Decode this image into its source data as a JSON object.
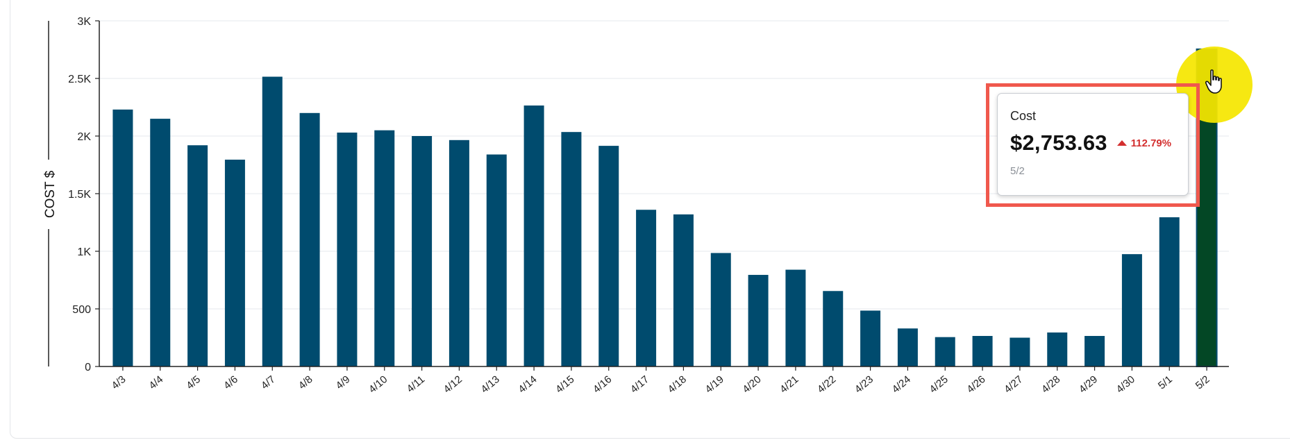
{
  "chart_data": {
    "type": "bar",
    "ylabel": "COST $",
    "ylim": [
      0,
      3000
    ],
    "yticks": [
      {
        "value": 0,
        "label": "0"
      },
      {
        "value": 500,
        "label": "500"
      },
      {
        "value": 1000,
        "label": "1K"
      },
      {
        "value": 1500,
        "label": "1.5K"
      },
      {
        "value": 2000,
        "label": "2K"
      },
      {
        "value": 2500,
        "label": "2.5K"
      },
      {
        "value": 3000,
        "label": "3K"
      }
    ],
    "grid": true,
    "categories": [
      "4/3",
      "4/4",
      "4/5",
      "4/6",
      "4/7",
      "4/8",
      "4/9",
      "4/10",
      "4/11",
      "4/12",
      "4/13",
      "4/14",
      "4/15",
      "4/16",
      "4/17",
      "4/18",
      "4/19",
      "4/20",
      "4/21",
      "4/22",
      "4/23",
      "4/24",
      "4/25",
      "4/26",
      "4/27",
      "4/28",
      "4/29",
      "4/30",
      "5/1",
      "5/2"
    ],
    "values": [
      2230,
      2150,
      1920,
      1795,
      2515,
      2200,
      2030,
      2050,
      2000,
      1965,
      1840,
      2265,
      2035,
      1915,
      1360,
      1320,
      985,
      795,
      840,
      655,
      485,
      330,
      255,
      265,
      250,
      295,
      265,
      975,
      1295,
      2753.63
    ],
    "highlighted_category": "5/2",
    "colors": {
      "bar": "#004b6e",
      "bar_highlight": "#034725"
    }
  },
  "tooltip": {
    "label": "Cost",
    "value": "$2,753.63",
    "change": "112.79%",
    "date": "5/2"
  },
  "cursor": {
    "icon": "hand-pointer-icon"
  }
}
